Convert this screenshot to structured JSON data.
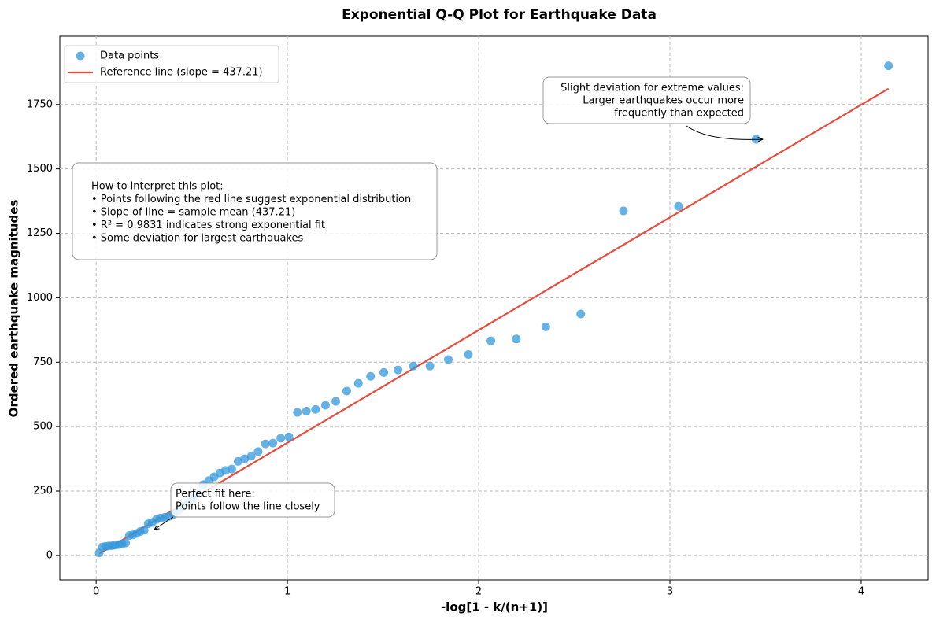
{
  "chart_data": {
    "type": "scatter",
    "title": "Exponential Q-Q Plot for Earthquake Data",
    "x_label": "-log[1 - k/(n+1)]",
    "y_label": "Ordered earthquake magnitudes",
    "xlim": [
      -0.19,
      4.35
    ],
    "ylim": [
      -95,
      2015
    ],
    "xticks": [
      0,
      1,
      2,
      3,
      4
    ],
    "yticks": [
      0,
      250,
      500,
      750,
      1000,
      1250,
      1500,
      1750
    ],
    "grid": true,
    "legend": "upper left",
    "series": [
      {
        "name": "Data points",
        "color": "#3498db",
        "type": "scatter",
        "x": [
          0.016,
          0.032,
          0.049,
          0.066,
          0.083,
          0.1,
          0.118,
          0.136,
          0.154,
          0.173,
          0.192,
          0.211,
          0.231,
          0.251,
          0.272,
          0.293,
          0.315,
          0.336,
          0.359,
          0.382,
          0.405,
          0.43,
          0.454,
          0.48,
          0.506,
          0.532,
          0.56,
          0.588,
          0.617,
          0.647,
          0.677,
          0.709,
          0.742,
          0.776,
          0.811,
          0.847,
          0.885,
          0.924,
          0.965,
          1.008,
          1.052,
          1.099,
          1.147,
          1.199,
          1.253,
          1.31,
          1.371,
          1.435,
          1.504,
          1.578,
          1.658,
          1.745,
          1.841,
          1.946,
          2.064,
          2.197,
          2.351,
          2.534,
          2.757,
          3.045,
          3.45,
          4.143
        ],
        "values": [
          10,
          33,
          35,
          37,
          38,
          40,
          42,
          45,
          48,
          77,
          80,
          85,
          93,
          98,
          123,
          128,
          140,
          145,
          148,
          152,
          160,
          175,
          190,
          205,
          220,
          240,
          275,
          290,
          305,
          320,
          330,
          335,
          365,
          375,
          385,
          403,
          433,
          436,
          455,
          460,
          555,
          560,
          567,
          583,
          598,
          638,
          668,
          695,
          710,
          720,
          735,
          735,
          760,
          780,
          833,
          840,
          887,
          937,
          1337,
          1355,
          1615,
          1900
        ]
      },
      {
        "name": "Reference line (slope = 437.21)",
        "color": "#e74c3c",
        "type": "line",
        "x": [
          0.016,
          4.143
        ],
        "values": [
          7.0,
          1811.4
        ]
      }
    ],
    "annotations": [
      {
        "lines": [
          "Perfect fit here:",
          "Points follow the line closely"
        ]
      },
      {
        "lines": [
          "Slight deviation for extreme values:",
          "Larger earthquakes occur more",
          "frequently than expected"
        ]
      },
      {
        "lines": [
          "How to interpret this plot:",
          "• Points following the red line suggest exponential distribution",
          "• Slope of line = sample mean (437.21)",
          "• R² = 0.9831 indicates strong exponential fit",
          "• Some deviation for largest earthquakes"
        ]
      }
    ]
  }
}
